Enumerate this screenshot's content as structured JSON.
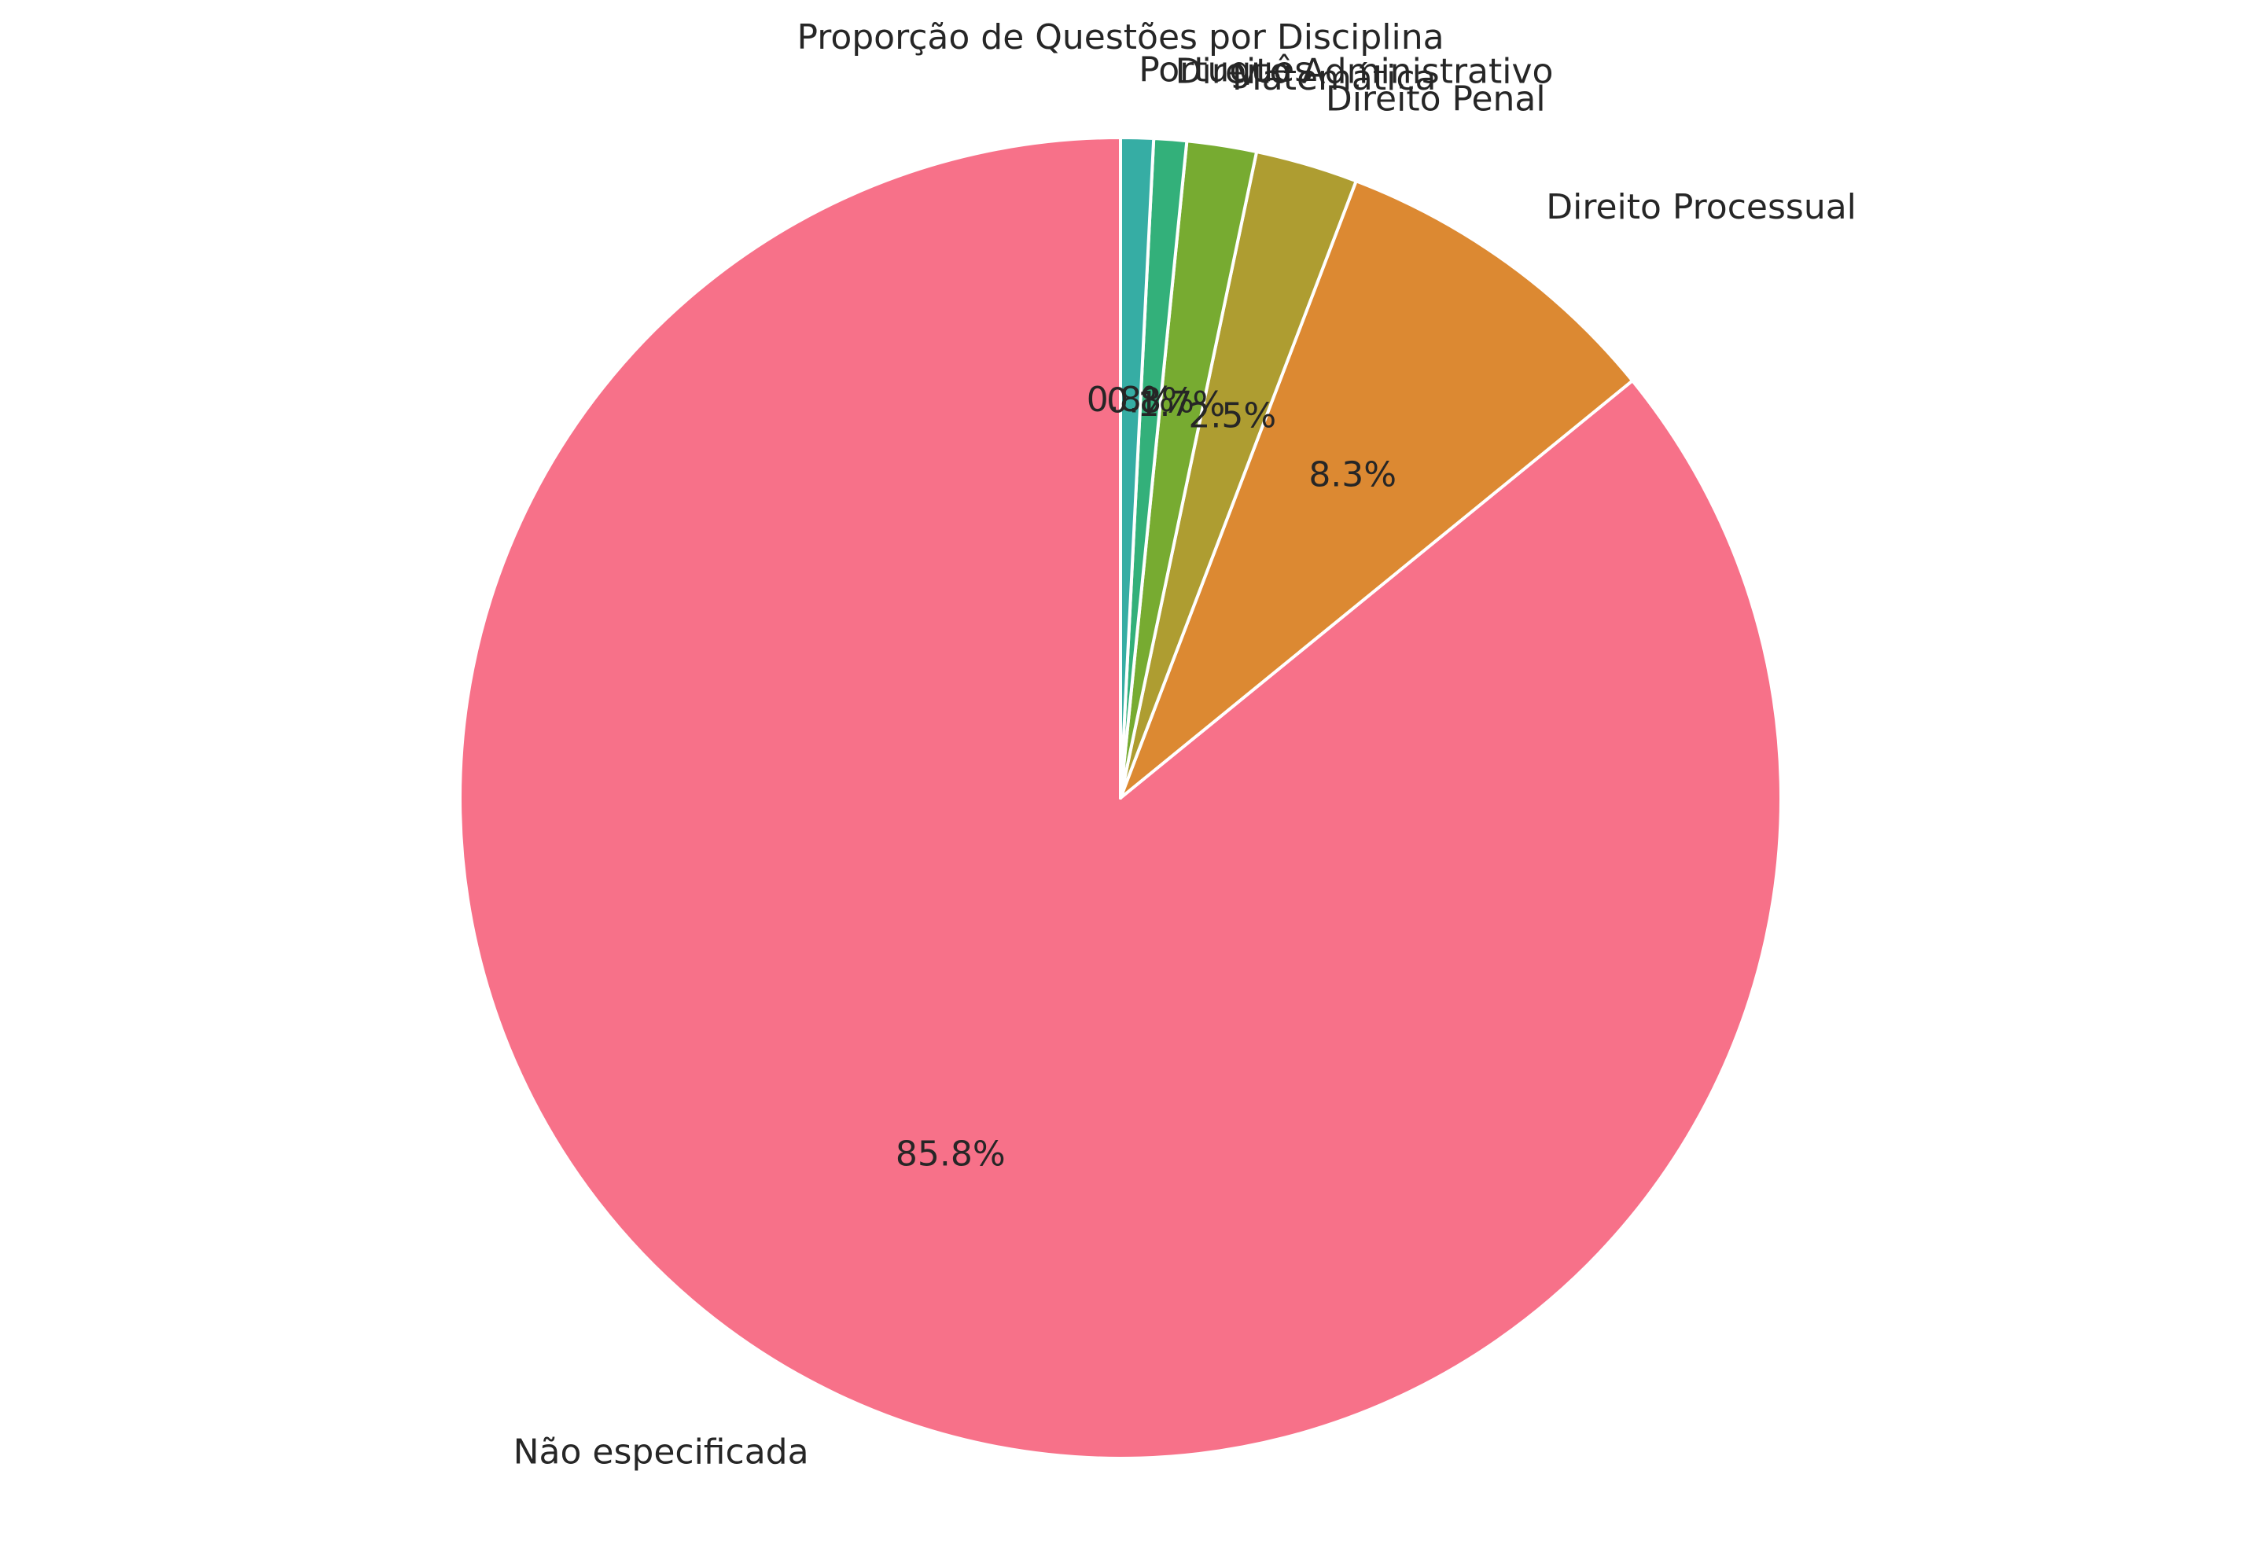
{
  "chart_data": {
    "type": "pie",
    "title": "Proporção de Questões por Disciplina",
    "start_angle_deg": 90,
    "direction": "counterclockwise",
    "slices": [
      {
        "label": "Não especificada",
        "value": 85.8,
        "pct_label": "85.8%",
        "color": "#f77189"
      },
      {
        "label": "Direito Processual",
        "value": 8.3,
        "pct_label": "8.3%",
        "color": "#dc8932"
      },
      {
        "label": "Direito Penal",
        "value": 2.5,
        "pct_label": "2.5%",
        "color": "#ae9d31"
      },
      {
        "label": "Matemática",
        "value": 1.7,
        "pct_label": "1.7%",
        "color": "#77ab31"
      },
      {
        "label": "Direito Administrativo",
        "value": 0.8,
        "pct_label": "0.8%",
        "color": "#33b07a"
      },
      {
        "label": "Português",
        "value": 0.8,
        "pct_label": "0.8%",
        "color": "#36ada4"
      }
    ]
  }
}
